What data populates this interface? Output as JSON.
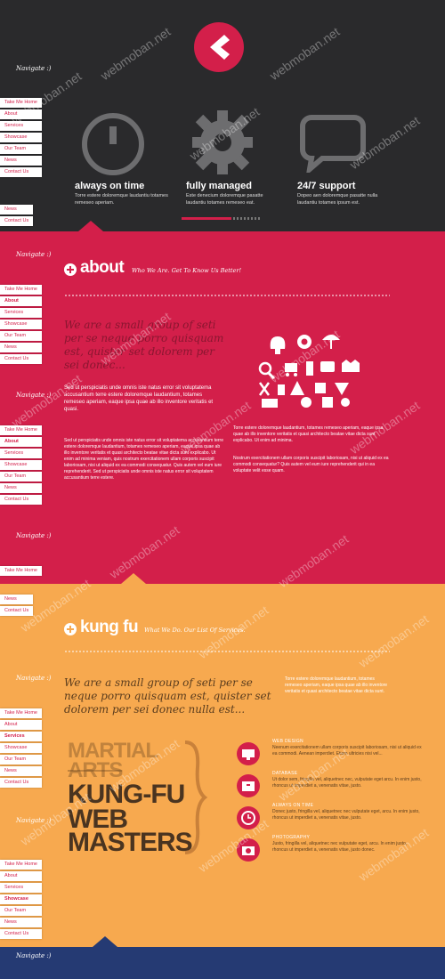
{
  "nav": {
    "label": "Navigate :)",
    "items": [
      "Take Me Home",
      "About",
      "Services",
      "Showcase",
      "Our Team",
      "News",
      "Contact Us"
    ]
  },
  "hero": {
    "features": [
      {
        "title": "always on time",
        "icon": "clock-icon",
        "desc": "Torre estere doloremque laudantiu totames remeseo aperiam."
      },
      {
        "title": "fully managed",
        "icon": "gear-icon",
        "desc": "Este denecium doloremque pasatte laudantiu totames remeseo eat."
      },
      {
        "title": "24/7 support",
        "icon": "speech-bubble-icon",
        "desc": "Dopeo aen doloremque pasatte nulla laudantiu totames ipsum est."
      }
    ]
  },
  "about": {
    "title": "about",
    "subtitle": "Who We Are. Get To Know Us Better!",
    "lead": "We are a small group of seti per se neque porro quisquam est, quister set dolorem per sei donec...",
    "para1": "Sed ut perspiciatis unde omnis iste natus error sit voluptatema accusantium terre estere doloremque laudantium, totames remeseo aperiam, eaque ipsa quae ab illo inventore veritatis et quasi.",
    "para2": "Sed ut perspiciatis unde omnis iste natus error sit voluptatema accusantium terre estere doloremque laudantium, totames remeseo aperiam, eaque ipsa quae ab illo inventore veritatis et quasi architecto beatae vitae dicta sunt explicabo. Ut enim ad minima veniam, quis nostrum exercitationem ullam corporis suscipit laboriosam, nisi ut aliquid ex ea commodi consequatur. Quis autem vel eum iure reprehenderit. Sed ut perspiciatis unde omnis iste natus error sit voluptatem accusantium terre estere.",
    "para3": "Torre estere doloremque laudantium, totames remeseo aperiam, eaque ipsa quae ab illo inventore veritatis et quasi architecto beatae vitae dicta sunt explicabo. Ut enim ad minima.",
    "para4": "Nostrum exercitationem ullam corporis suscipit laboriosam, nisi ut aliquid ex ea commodi consequatur? Quis autem vel eum iure reprehenderit qui in ea voluptate velit esse quam."
  },
  "kungfu": {
    "title": "kung fu",
    "subtitle": "What We Do. Our List Of Services.",
    "lead": "We are a small group of seti per se neque porro quisquam est, quister set dolorem per sei donec nulla est...",
    "side": "Torre estere doloremque laudantium, totames remeseo aperiam, eaque ipsa quae ab illo inventore veritatis et quasi architecto beatae vitae dicta sunt.",
    "martial": "MARTIAL",
    "arts": "ARTS",
    "kungfu_big": "KUNG-FU",
    "web": "WEB",
    "masters": "MASTERS",
    "services": [
      {
        "title": "WEB DESIGN",
        "icon": "monitor-icon",
        "desc": "Neenum exercitationem ullam corporis suscipit laboriosam, nisi ut aliquid ex ea commodi. Aenean imperdiet. Etiam ultricies nisi vel..."
      },
      {
        "title": "DATABASE",
        "icon": "database-box-icon",
        "desc": "Ut dolor sem, fringilla vel, aliquetnec nec, vulputate eget arcu. In enim justo, rhoncus ut imperdiet a, venenatis vitae, justo."
      },
      {
        "title": "ALWAYS ON TIME",
        "icon": "clock-icon",
        "desc": "Donec justo, fringilla vel, aliquetnec nec vulputate eget, arcu. In enim justo, rhoncus ut imperdiet a, venenatis vitae, justo."
      },
      {
        "title": "PHOTOGRAPHY",
        "icon": "camera-icon",
        "desc": "Justo, fringilla vel, aliquetnec nec vulputate eget, arcu. In enim justo, rhoncus ut imperdiet a, venenatis vitae, justo donec."
      }
    ]
  },
  "watermark": "webmoban.net",
  "colors": {
    "dark": "#2a2a2c",
    "crimson": "#d31f4a",
    "orange": "#f7a94f",
    "navy": "#253a73"
  }
}
